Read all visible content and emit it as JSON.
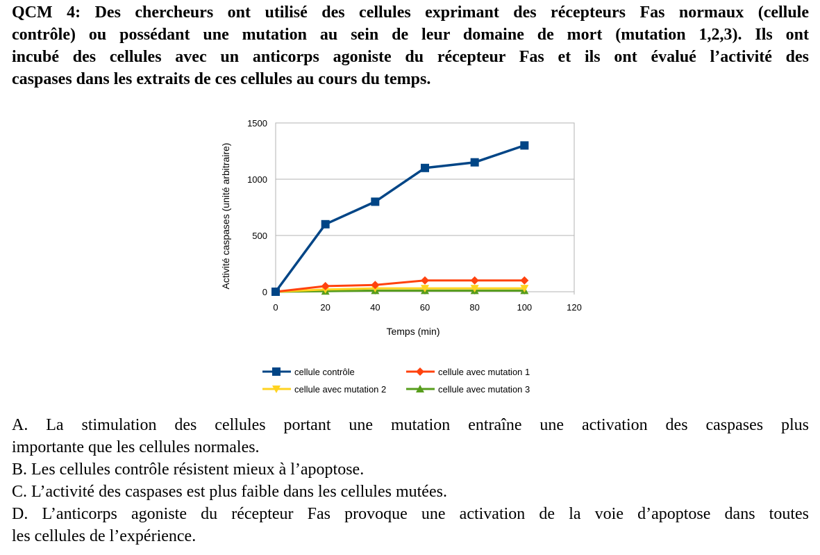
{
  "question": {
    "label": "QCM 4:",
    "lines": [
      "Des chercheurs ont utilisé des cellules exprimant des récepteurs Fas normaux (cellule",
      "contrôle) ou possédant une mutation au sein de leur domaine de mort (mutation 1,2,3). Ils ont",
      "incubé des cellules avec un anticorps agoniste du récepteur Fas et ils ont évalué l’activité des",
      "caspases dans les extraits de ces cellules au cours du temps."
    ]
  },
  "chart_data": {
    "type": "line",
    "title": "",
    "xlabel": "Temps (min)",
    "ylabel": "Activité caspases (unité arbitraire)",
    "xlim": [
      0,
      120
    ],
    "ylim": [
      0,
      1500
    ],
    "xticks": [
      "0",
      "20",
      "40",
      "60",
      "80",
      "100",
      "120"
    ],
    "yticks": [
      "0",
      "500",
      "1000",
      "1500"
    ],
    "grid": "horizontal",
    "legend_position": "bottom",
    "x": [
      0,
      20,
      40,
      60,
      80,
      100
    ],
    "series": [
      {
        "name": "cellule contrôle",
        "color": "#004586",
        "marker": "square",
        "values": [
          0,
          600,
          800,
          1100,
          1150,
          1300
        ]
      },
      {
        "name": "cellule avec mutation 1",
        "color": "#FF420E",
        "marker": "diamond",
        "values": [
          0,
          50,
          60,
          100,
          100,
          100
        ]
      },
      {
        "name": "cellule avec mutation 2",
        "color": "#FFD320",
        "marker": "triangle-down",
        "values": [
          0,
          20,
          30,
          30,
          30,
          30
        ]
      },
      {
        "name": "cellule avec mutation 3",
        "color": "#579D1C",
        "marker": "triangle-up",
        "values": [
          0,
          5,
          10,
          10,
          10,
          10
        ]
      }
    ]
  },
  "answers": [
    "A. La stimulation des cellules portant une mutation entraîne une activation des caspases plus",
    "importante que les cellules normales.",
    "B. Les cellules contrôle résistent mieux à l’apoptose.",
    "C. L’activité des caspases est plus faible dans les cellules mutées.",
    "D. L’anticorps agoniste du récepteur Fas provoque une activation de la voie d’apoptose dans toutes",
    "les cellules de l’expérience."
  ]
}
